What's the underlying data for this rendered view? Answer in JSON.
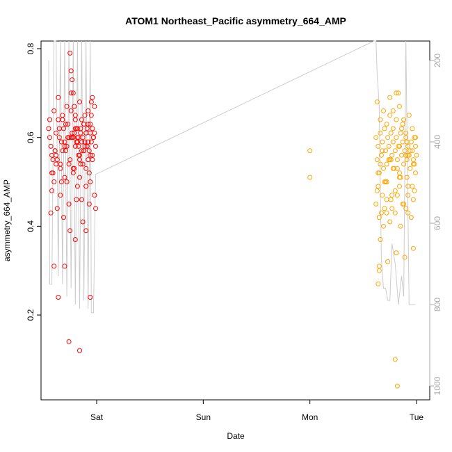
{
  "chart_data": {
    "type": "scatter",
    "title": "ATOM1 Northeast_Pacific asymmetry_664_AMP",
    "xlabel": "Date",
    "ylabel": "asymmetry_664_AMP",
    "x_ticks": [
      "Sat",
      "Sun",
      "Mon",
      "Tue"
    ],
    "x_tick_positions_days": [
      1,
      2,
      3,
      4
    ],
    "ylim": [
      0.0,
      0.82
    ],
    "y_ticks": [
      0.2,
      0.4,
      0.6,
      0.8
    ],
    "y_tick_labels": [
      "0.2",
      "0.4",
      "0.6",
      "0.8"
    ],
    "secondary_y": {
      "label": "",
      "reversed": true,
      "ticks": [
        200,
        400,
        600,
        800,
        1000
      ],
      "tick_labels": [
        "200",
        "400",
        "600",
        "800",
        "1000"
      ],
      "color": "#aaaaaa"
    },
    "grid": false,
    "series": [
      {
        "color": "#ff0000",
        "marker": "open-circle",
        "x": [
          0.55,
          0.57,
          0.58,
          0.6,
          0.62,
          0.63,
          0.65,
          0.66,
          0.68,
          0.7,
          0.71,
          0.73,
          0.74,
          0.76,
          0.78,
          0.8,
          0.82,
          0.84,
          0.86,
          0.88,
          0.9,
          0.92,
          0.94,
          0.96,
          0.98,
          0.56,
          0.59,
          0.61,
          0.64,
          0.67,
          0.69,
          0.72,
          0.75,
          0.77,
          0.79,
          0.81,
          0.83,
          0.85,
          0.87,
          0.89,
          0.91,
          0.93,
          0.95,
          0.97,
          0.99,
          0.58,
          0.62,
          0.66,
          0.7,
          0.74,
          0.78,
          0.82,
          0.86,
          0.9,
          0.94,
          0.98,
          0.6,
          0.64,
          0.68,
          0.72,
          0.76,
          0.8,
          0.84,
          0.88,
          0.92,
          0.96,
          0.57,
          0.63,
          0.69,
          0.75,
          0.81,
          0.87,
          0.93,
          0.99,
          0.61,
          0.67,
          0.73,
          0.79,
          0.85,
          0.91,
          0.97,
          0.56,
          0.65,
          0.71,
          0.77,
          0.83,
          0.89,
          0.95,
          0.59,
          0.68,
          0.74,
          0.8,
          0.86,
          0.92,
          0.98,
          0.62,
          0.7,
          0.76,
          0.82,
          0.88,
          0.94,
          0.58,
          0.66,
          0.72,
          0.78,
          0.84,
          0.9,
          0.96,
          0.6,
          0.7,
          0.8,
          0.9,
          0.64,
          0.74,
          0.84,
          0.94,
          0.75,
          0.76,
          0.77,
          0.78,
          0.79,
          0.8,
          0.81,
          0.82,
          0.83,
          0.84,
          0.85,
          0.86,
          0.87,
          0.88,
          0.89,
          0.9,
          0.91,
          0.92,
          0.93,
          0.94,
          0.95,
          0.96,
          0.97
        ],
        "y": [
          0.62,
          0.58,
          0.56,
          0.5,
          0.61,
          0.55,
          0.6,
          0.53,
          0.65,
          0.59,
          0.57,
          0.63,
          0.54,
          0.66,
          0.6,
          0.58,
          0.62,
          0.55,
          0.64,
          0.57,
          0.61,
          0.59,
          0.63,
          0.56,
          0.67,
          0.6,
          0.52,
          0.57,
          0.64,
          0.5,
          0.62,
          0.58,
          0.55,
          0.6,
          0.53,
          0.59,
          0.56,
          0.61,
          0.54,
          0.58,
          0.62,
          0.57,
          0.65,
          0.6,
          0.58,
          0.48,
          0.54,
          0.47,
          0.51,
          0.45,
          0.52,
          0.49,
          0.46,
          0.53,
          0.5,
          0.47,
          0.66,
          0.69,
          0.64,
          0.67,
          0.7,
          0.65,
          0.68,
          0.63,
          0.66,
          0.69,
          0.43,
          0.44,
          0.42,
          0.39,
          0.46,
          0.41,
          0.45,
          0.44,
          0.57,
          0.59,
          0.6,
          0.61,
          0.62,
          0.58,
          0.6,
          0.64,
          0.62,
          0.63,
          0.61,
          0.6,
          0.59,
          0.68,
          0.55,
          0.57,
          0.6,
          0.62,
          0.59,
          0.63,
          0.61,
          0.56,
          0.58,
          0.6,
          0.59,
          0.57,
          0.61,
          0.52,
          0.54,
          0.5,
          0.53,
          0.51,
          0.49,
          0.55,
          0.31,
          0.31,
          0.37,
          0.39,
          0.24,
          0.14,
          0.12,
          0.24,
          0.79,
          0.75,
          0.73,
          0.7,
          0.67,
          0.64,
          0.62,
          0.6,
          0.58,
          0.56,
          0.54,
          0.57,
          0.6,
          0.63,
          0.65,
          0.61,
          0.58,
          0.55,
          0.52,
          0.56,
          0.59,
          0.62,
          0.6
        ]
      },
      {
        "color": "#ffa500",
        "marker": "open-circle",
        "x": [
          3.0,
          3.0,
          3.62,
          3.63,
          3.64,
          3.65,
          3.66,
          3.67,
          3.68,
          3.69,
          3.7,
          3.71,
          3.72,
          3.73,
          3.74,
          3.75,
          3.76,
          3.77,
          3.78,
          3.79,
          3.8,
          3.81,
          3.82,
          3.83,
          3.84,
          3.85,
          3.86,
          3.87,
          3.88,
          3.89,
          3.9,
          3.91,
          3.92,
          3.93,
          3.94,
          3.95,
          3.96,
          3.97,
          3.98,
          3.99,
          4.0,
          3.63,
          3.66,
          3.69,
          3.72,
          3.75,
          3.78,
          3.81,
          3.84,
          3.87,
          3.9,
          3.93,
          3.96,
          3.99,
          3.64,
          3.68,
          3.72,
          3.76,
          3.8,
          3.84,
          3.88,
          3.92,
          3.96,
          3.65,
          3.7,
          3.75,
          3.8,
          3.85,
          3.9,
          3.95,
          3.62,
          3.67,
          3.72,
          3.77,
          3.82,
          3.87,
          3.92,
          3.97,
          3.64,
          3.71,
          3.78,
          3.85,
          3.92,
          3.99,
          3.66,
          3.74,
          3.82,
          3.9,
          3.98,
          3.68,
          3.76,
          3.84,
          3.92,
          3.63,
          3.7,
          3.77,
          3.84,
          3.91,
          3.98,
          3.65,
          3.73,
          3.81,
          3.89,
          3.97,
          3.8,
          3.82,
          3.64,
          3.65,
          3.66,
          3.69,
          3.72,
          3.75,
          3.78,
          3.81,
          3.83,
          3.86,
          3.88,
          3.91,
          3.94,
          3.97
        ],
        "y": [
          0.57,
          0.51,
          0.6,
          0.55,
          0.58,
          0.52,
          0.61,
          0.56,
          0.59,
          0.53,
          0.62,
          0.57,
          0.54,
          0.6,
          0.58,
          0.55,
          0.61,
          0.56,
          0.59,
          0.53,
          0.57,
          0.6,
          0.55,
          0.58,
          0.52,
          0.61,
          0.56,
          0.59,
          0.54,
          0.57,
          0.6,
          0.55,
          0.58,
          0.56,
          0.53,
          0.59,
          0.57,
          0.54,
          0.6,
          0.58,
          0.56,
          0.68,
          0.64,
          0.66,
          0.63,
          0.65,
          0.62,
          0.64,
          0.67,
          0.63,
          0.61,
          0.65,
          0.62,
          0.6,
          0.49,
          0.47,
          0.5,
          0.46,
          0.48,
          0.51,
          0.45,
          0.47,
          0.49,
          0.42,
          0.44,
          0.41,
          0.43,
          0.4,
          0.44,
          0.42,
          0.45,
          0.43,
          0.46,
          0.44,
          0.47,
          0.45,
          0.43,
          0.46,
          0.52,
          0.5,
          0.53,
          0.51,
          0.49,
          0.52,
          0.54,
          0.55,
          0.53,
          0.56,
          0.54,
          0.57,
          0.55,
          0.58,
          0.56,
          0.48,
          0.5,
          0.47,
          0.49,
          0.51,
          0.48,
          0.3,
          0.32,
          0.34,
          0.33,
          0.35,
          0.1,
          0.04,
          0.27,
          0.31,
          0.37,
          0.4,
          0.43,
          0.69,
          0.66,
          0.7,
          0.7,
          0.62,
          0.64,
          0.59,
          0.57,
          0.55
        ]
      }
    ],
    "background_line": {
      "color": "#cccccc",
      "axis": "secondary",
      "x": [
        0.55,
        0.56,
        0.58,
        0.6,
        0.62,
        0.64,
        0.66,
        0.68,
        0.7,
        0.72,
        0.74,
        0.76,
        0.78,
        0.8,
        0.82,
        0.84,
        0.86,
        0.88,
        0.9,
        0.92,
        0.94,
        0.95,
        0.97,
        0.99,
        3.6,
        3.62,
        3.63,
        3.65,
        3.67,
        3.69,
        3.71,
        3.73,
        3.75,
        3.77,
        3.8,
        3.83,
        3.86,
        3.88,
        3.9,
        3.93,
        3.96,
        3.99
      ],
      "y": [
        200,
        750,
        750,
        100,
        100,
        730,
        100,
        750,
        100,
        780,
        100,
        760,
        100,
        800,
        100,
        810,
        100,
        790,
        100,
        810,
        100,
        820,
        820,
        480,
        145,
        145,
        230,
        310,
        690,
        760,
        760,
        790,
        790,
        650,
        700,
        800,
        730,
        780,
        100,
        800,
        800,
        800
      ]
    }
  }
}
